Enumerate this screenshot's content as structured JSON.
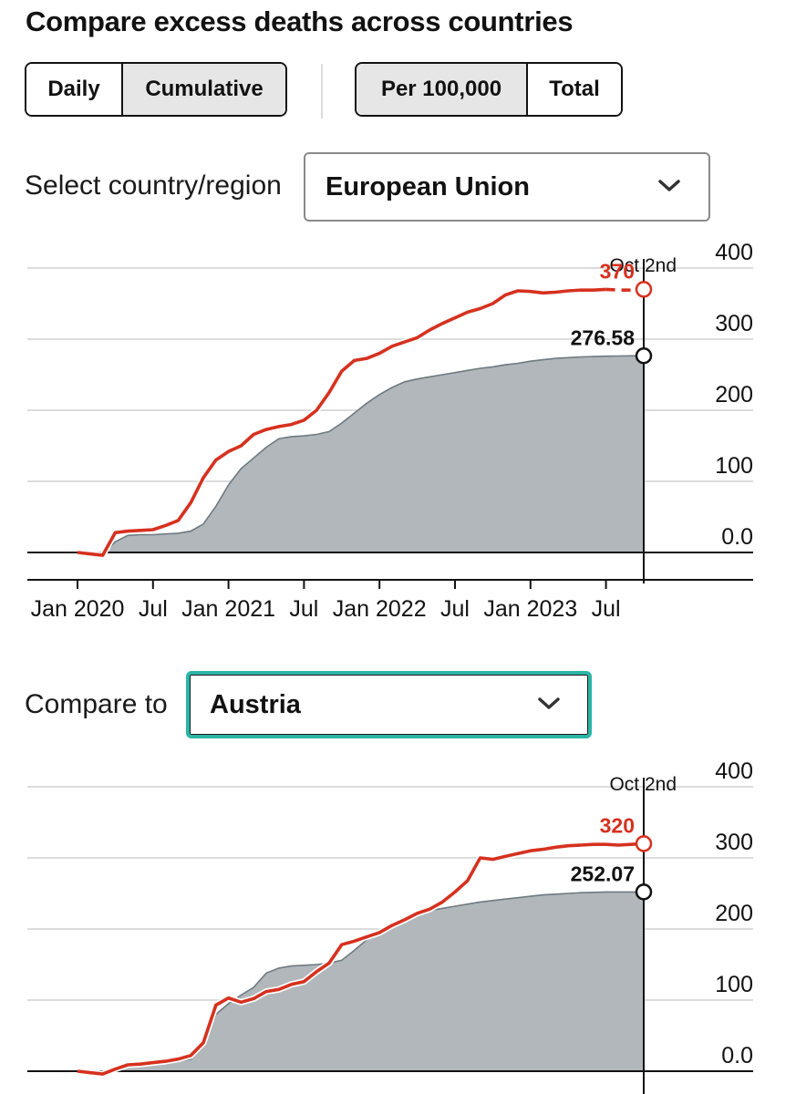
{
  "page": {
    "title": "Compare excess deaths across countries"
  },
  "toggles": {
    "mode": [
      {
        "label": "Daily",
        "active": false
      },
      {
        "label": "Cumulative",
        "active": true
      }
    ],
    "scale": [
      {
        "label": "Per 100,000",
        "active": true
      },
      {
        "label": "Total",
        "active": false
      }
    ]
  },
  "selectors": {
    "country_label": "Select country/region",
    "country_value": "European Union",
    "compare_label": "Compare to",
    "compare_value": "Austria"
  },
  "colors": {
    "red": "#d6311f",
    "gray_fill": "#b1b7bb",
    "gray_line": "#6f7a80",
    "teal": "#2bb5a7"
  },
  "chart_data": [
    {
      "type": "area",
      "region": "European Union",
      "ylim": [
        0,
        400
      ],
      "yticks": [
        "400",
        "300",
        "200",
        "100",
        "0.0"
      ],
      "xticks": [
        "Jan 2020",
        "Jul",
        "Jan 2021",
        "Jul",
        "Jan 2022",
        "Jul",
        "Jan 2023",
        "Jul"
      ],
      "xtick_months": [
        0,
        6,
        12,
        18,
        24,
        30,
        36,
        42
      ],
      "marker_label": "Oct 2nd",
      "marker_month": 45,
      "series": [
        {
          "name": "central estimate",
          "style": "area",
          "x": [
            0,
            1,
            2,
            3,
            4,
            5,
            6,
            7,
            8,
            9,
            10,
            11,
            12,
            13,
            14,
            15,
            16,
            17,
            18,
            19,
            20,
            21,
            22,
            23,
            24,
            25,
            26,
            27,
            28,
            29,
            30,
            31,
            32,
            33,
            34,
            35,
            36,
            37,
            38,
            39,
            40,
            41,
            42,
            43,
            44,
            45
          ],
          "values": [
            0,
            -2,
            -3,
            15,
            24,
            25,
            25,
            26,
            27,
            30,
            40,
            65,
            95,
            118,
            133,
            148,
            160,
            163,
            164,
            166,
            170,
            182,
            196,
            210,
            222,
            232,
            240,
            244,
            247,
            250,
            253,
            256,
            259,
            261,
            264,
            266,
            269,
            271,
            273,
            274,
            275,
            275.5,
            276,
            276.3,
            276.5,
            276.58
          ]
        },
        {
          "name": "upper estimate",
          "style": "line",
          "dashed_from_month": 42,
          "x": [
            0,
            1,
            2,
            3,
            4,
            5,
            6,
            7,
            8,
            9,
            10,
            11,
            12,
            13,
            14,
            15,
            16,
            17,
            18,
            19,
            20,
            21,
            22,
            23,
            24,
            25,
            26,
            27,
            28,
            29,
            30,
            31,
            32,
            33,
            34,
            35,
            36,
            37,
            38,
            39,
            40,
            41,
            42,
            43,
            44,
            45
          ],
          "values": [
            0,
            -2,
            -4,
            28,
            30,
            31,
            32,
            38,
            45,
            70,
            105,
            130,
            142,
            150,
            166,
            173,
            177,
            180,
            186,
            200,
            225,
            255,
            270,
            273,
            280,
            290,
            296,
            302,
            313,
            322,
            330,
            338,
            343,
            350,
            362,
            368,
            367,
            365,
            366,
            368,
            369,
            369,
            370,
            369,
            369,
            370
          ]
        }
      ],
      "labels": {
        "upper_value": "370",
        "central_value": "276.58"
      }
    },
    {
      "type": "area",
      "region": "Austria",
      "ylim": [
        0,
        400
      ],
      "yticks": [
        "400",
        "300",
        "200",
        "100",
        "0.0"
      ],
      "marker_label": "Oct 2nd",
      "marker_month": 45,
      "series": [
        {
          "name": "central estimate",
          "style": "area",
          "x": [
            0,
            1,
            2,
            3,
            4,
            5,
            6,
            7,
            8,
            9,
            10,
            11,
            12,
            13,
            14,
            15,
            16,
            17,
            18,
            19,
            20,
            21,
            22,
            23,
            24,
            25,
            26,
            27,
            28,
            29,
            30,
            31,
            32,
            33,
            34,
            35,
            36,
            37,
            38,
            39,
            40,
            41,
            42,
            43,
            44,
            45
          ],
          "values": [
            0,
            -2,
            -4,
            3,
            9,
            10,
            12,
            13,
            14,
            17,
            35,
            80,
            95,
            107,
            118,
            138,
            145,
            148,
            149,
            150,
            152,
            156,
            170,
            185,
            193,
            202,
            215,
            222,
            226,
            229,
            232,
            235,
            238,
            240,
            242,
            244,
            246,
            248,
            249,
            250,
            251,
            251.5,
            252,
            252,
            252.05,
            252.07
          ]
        },
        {
          "name": "upper estimate",
          "style": "line",
          "x": [
            0,
            1,
            2,
            3,
            4,
            5,
            6,
            7,
            8,
            9,
            10,
            11,
            12,
            13,
            14,
            15,
            16,
            17,
            18,
            19,
            20,
            21,
            22,
            23,
            24,
            25,
            26,
            27,
            28,
            29,
            30,
            31,
            32,
            33,
            34,
            35,
            36,
            37,
            38,
            39,
            40,
            41,
            42,
            43,
            44,
            45
          ],
          "values": [
            0,
            -2,
            -4,
            3,
            9,
            10,
            12,
            14,
            17,
            22,
            40,
            93,
            103,
            97,
            102,
            112,
            115,
            122,
            126,
            140,
            152,
            178,
            183,
            189,
            195,
            205,
            213,
            222,
            228,
            238,
            252,
            268,
            300,
            298,
            302,
            306,
            310,
            312,
            315,
            317,
            318,
            319,
            319,
            318,
            319,
            320
          ]
        }
      ],
      "labels": {
        "upper_value": "320",
        "central_value": "252.07"
      }
    }
  ]
}
